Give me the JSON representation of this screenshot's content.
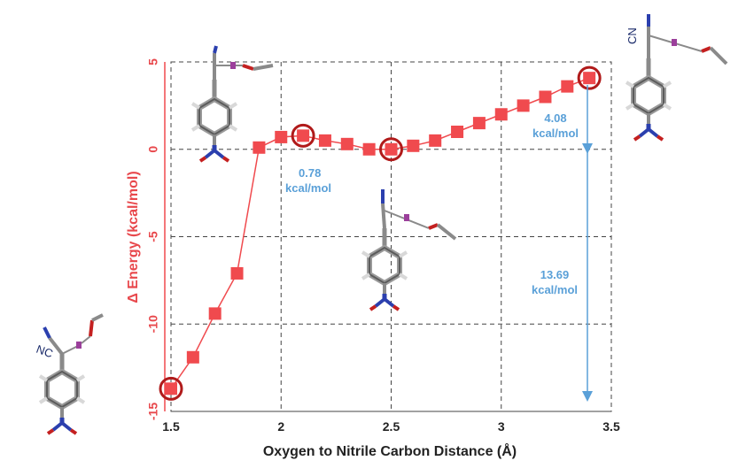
{
  "chart_data": {
    "type": "line",
    "title": "",
    "xlabel": "Oxygen to Nitrile Carbon Distance (Å)",
    "ylabel": "Δ Energy (kcal/mol)",
    "xlim": [
      1.5,
      3.5
    ],
    "ylim": [
      -15,
      5
    ],
    "xticks": [
      "1.5",
      "2",
      "2.5",
      "3",
      "3.5"
    ],
    "yticks": [
      "5",
      "0",
      "-5",
      "-10",
      "-15"
    ],
    "grid": true,
    "series": [
      {
        "name": "Δ Energy",
        "color": "#f04a4e",
        "x": [
          1.5,
          1.6,
          1.7,
          1.8,
          1.9,
          2.0,
          2.1,
          2.2,
          2.3,
          2.4,
          2.5,
          2.6,
          2.7,
          2.8,
          2.9,
          3.0,
          3.1,
          3.2,
          3.3,
          3.4
        ],
        "y": [
          -13.7,
          -11.9,
          -9.4,
          -7.1,
          0.1,
          0.7,
          0.78,
          0.5,
          0.3,
          0.0,
          0.0,
          0.2,
          0.5,
          1.0,
          1.5,
          2.0,
          2.5,
          3.0,
          3.6,
          4.08
        ]
      }
    ],
    "highlighted_points": [
      {
        "x": 1.5,
        "y": -13.7
      },
      {
        "x": 2.1,
        "y": 0.78
      },
      {
        "x": 2.5,
        "y": 0.0
      },
      {
        "x": 3.4,
        "y": 4.08
      }
    ],
    "annotations": [
      {
        "line1": "0.78",
        "line2": "kcal/mol"
      },
      {
        "line1": "4.08",
        "line2": "kcal/mol"
      },
      {
        "line1": "13.69",
        "line2": "kcal/mol"
      }
    ],
    "molecule_labels": [
      "NC",
      "CN"
    ]
  },
  "colors": {
    "series": "#f04a4e",
    "highlight_ring": "#b01a1a",
    "axis_y": "#e8484c",
    "annotation": "#5aa0d8"
  }
}
